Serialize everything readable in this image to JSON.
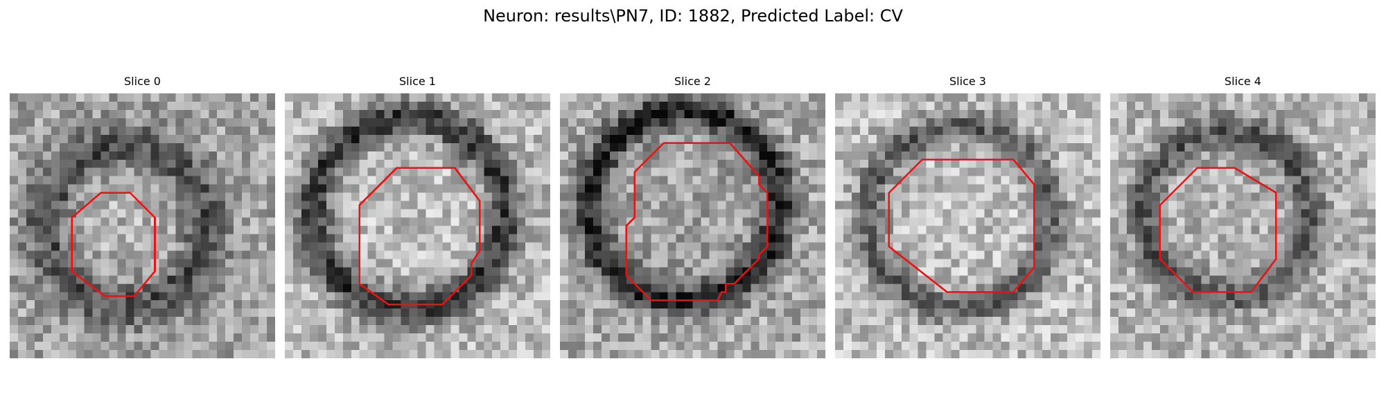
{
  "figure": {
    "suptitle": "Neuron: results\\PN7, ID: 1882, Predicted Label: CV",
    "contour_color": "#ee1111"
  },
  "panels": [
    {
      "title": "Slice 0"
    },
    {
      "title": "Slice 1"
    },
    {
      "title": "Slice 2"
    },
    {
      "title": "Slice 3"
    },
    {
      "title": "Slice 4"
    }
  ]
}
